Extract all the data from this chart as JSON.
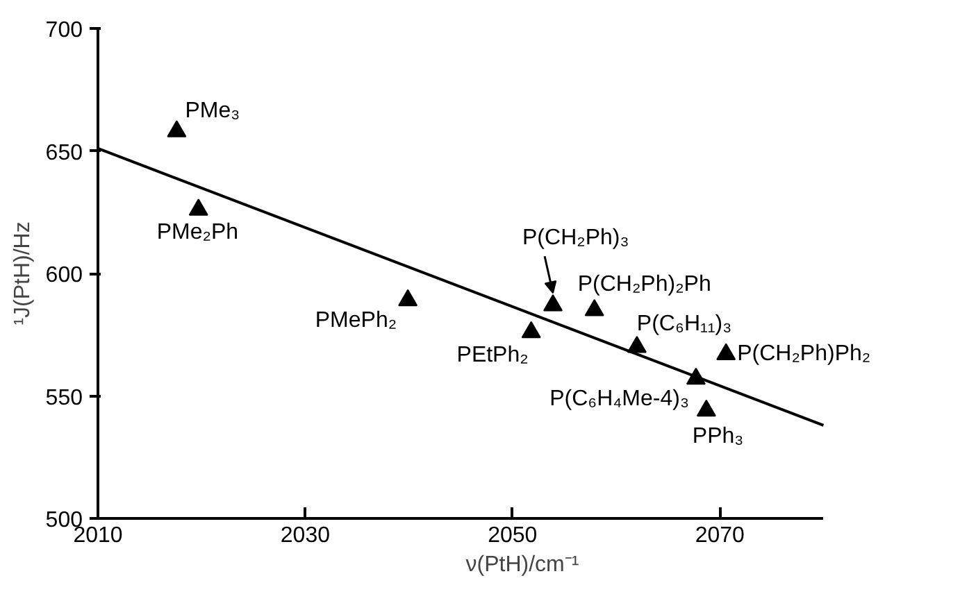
{
  "chart_data": {
    "type": "scatter",
    "xlabel": "ν(PtH)/cm⁻¹",
    "ylabel": "¹J(PtH)/Hz",
    "xlim": [
      2010,
      2080
    ],
    "ylim": [
      500,
      700
    ],
    "xticks": [
      2010,
      2030,
      2050,
      2070
    ],
    "yticks": [
      500,
      550,
      600,
      650,
      700
    ],
    "grid": false,
    "series": [
      {
        "marker": "triangle",
        "color": "#000000",
        "x": [
          2017.6,
          2019.7,
          2039.9,
          2051.8,
          2053.9,
          2057.9,
          2062,
          2067.7,
          2068.7,
          2070.6
        ],
        "values": [
          658,
          626,
          589,
          576,
          587,
          585,
          570,
          557,
          544,
          567
        ]
      },
      {
        "type": "line",
        "color": "#000000",
        "x": [
          2010,
          2080
        ],
        "values": [
          651,
          538
        ],
        "line_style": "solid",
        "marker": "none"
      }
    ],
    "annotations": [
      {
        "text": "PMe₃",
        "x": 2017.6,
        "y": 658
      },
      {
        "text": "PMe₂Ph",
        "x": 2019.7,
        "y": 626
      },
      {
        "text": "PMePh₂",
        "x": 2039.9,
        "y": 589
      },
      {
        "text": "PEtPh₂",
        "x": 2051.8,
        "y": 576
      },
      {
        "text": "P(CH₂Ph)₃",
        "x": 2053.9,
        "y": 587
      },
      {
        "text": "P(CH₂Ph)₂Ph",
        "x": 2057.9,
        "y": 585
      },
      {
        "text": "P(C₆H₁₁)₃",
        "x": 2062,
        "y": 570
      },
      {
        "text": "P(C₆H₄Me-4)₃",
        "x": 2067.7,
        "y": 557
      },
      {
        "text": "PPh₃",
        "x": 2068.7,
        "y": 544
      },
      {
        "text": "P(CH₂Ph)Ph₂",
        "x": 2070.6,
        "y": 567
      }
    ]
  }
}
